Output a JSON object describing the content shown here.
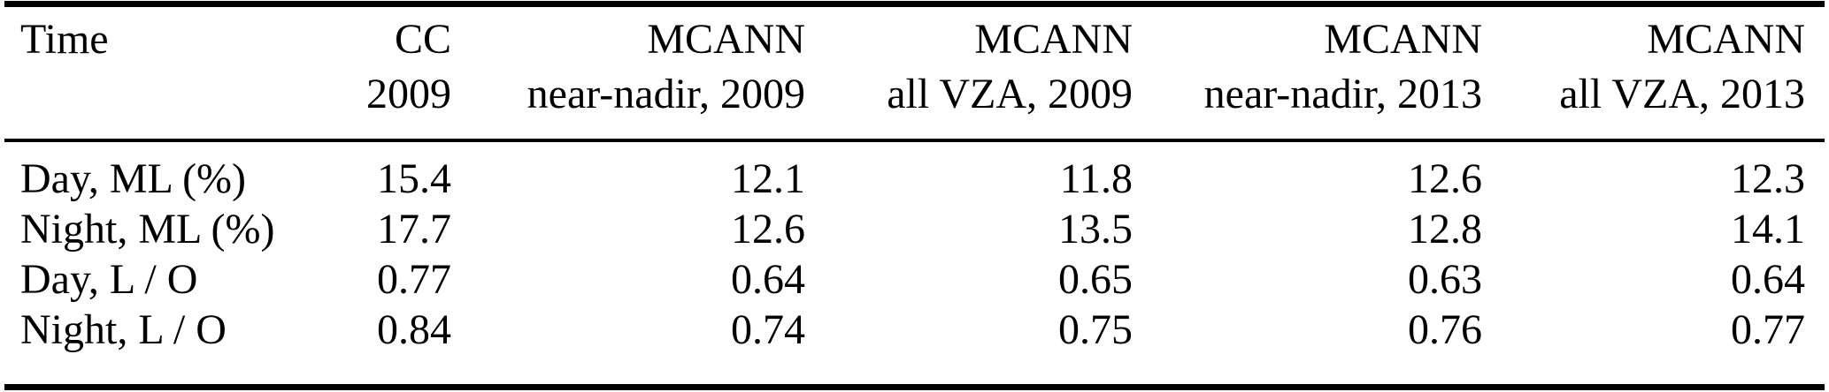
{
  "table": {
    "header": {
      "columns": [
        {
          "line1": "Time",
          "line2": ""
        },
        {
          "line1": "CC",
          "line2": "2009"
        },
        {
          "line1": "MCANN",
          "line2": "near-nadir, 2009"
        },
        {
          "line1": "MCANN",
          "line2": "all VZA, 2009"
        },
        {
          "line1": "MCANN",
          "line2": "near-nadir, 2013"
        },
        {
          "line1": "MCANN",
          "line2": "all VZA, 2013"
        }
      ]
    },
    "rows": [
      {
        "label": "Day, ML (%)",
        "values": [
          "15.4",
          "12.1",
          "11.8",
          "12.6",
          "12.3"
        ]
      },
      {
        "label": "Night, ML (%)",
        "values": [
          "17.7",
          "12.6",
          "13.5",
          "12.8",
          "14.1"
        ]
      },
      {
        "label": "Day, L / O",
        "values": [
          "0.77",
          "0.64",
          "0.65",
          "0.63",
          "0.64"
        ]
      },
      {
        "label": "Night, L / O",
        "values": [
          "0.84",
          "0.74",
          "0.75",
          "0.76",
          "0.77"
        ]
      }
    ]
  },
  "colors": {
    "text": "#000000",
    "background": "#ffffff",
    "rule": "#000000"
  }
}
